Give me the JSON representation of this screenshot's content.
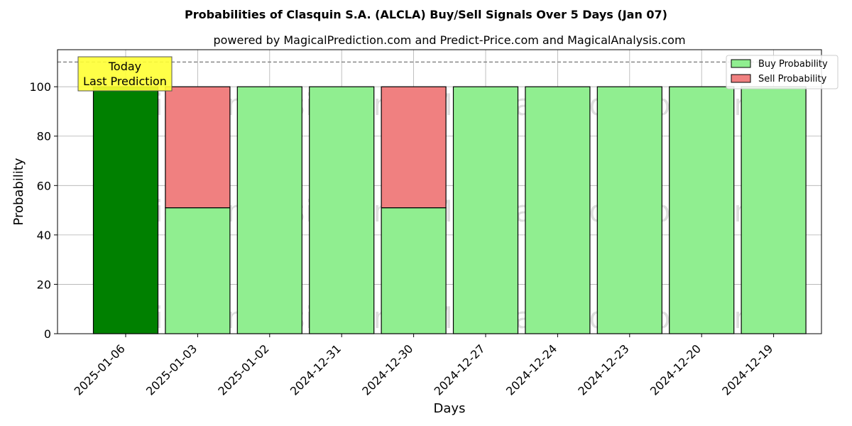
{
  "chart_data": {
    "type": "bar",
    "title": "Probabilities of Clasquin S.A. (ALCLA) Buy/Sell Signals Over 5 Days (Jan 07)",
    "subtitle": "powered by MagicalPrediction.com and Predict-Price.com and MagicalAnalysis.com",
    "xlabel": "Days",
    "ylabel": "Probability",
    "ylim": [
      0,
      115
    ],
    "yticks": [
      0,
      20,
      40,
      60,
      80,
      100
    ],
    "categories": [
      "2025-01-06",
      "2025-01-03",
      "2025-01-02",
      "2024-12-31",
      "2024-12-30",
      "2024-12-27",
      "2024-12-24",
      "2024-12-23",
      "2024-12-20",
      "2024-12-19"
    ],
    "series": [
      {
        "name": "Buy Probability",
        "values": [
          100,
          51,
          100,
          100,
          51,
          100,
          100,
          100,
          100,
          100
        ]
      },
      {
        "name": "Sell Probability",
        "values": [
          0,
          49,
          0,
          0,
          49,
          0,
          0,
          0,
          0,
          0
        ]
      }
    ],
    "highlight_index": 0,
    "reference_line": 110,
    "annotation": [
      "Today",
      "Last Prediction"
    ],
    "watermarks": [
      "MagicalAnalysis.com",
      "MagicalPrediction.com"
    ],
    "legend_placement": "top-right",
    "grid": true,
    "colors": {
      "buy": "#90ee90",
      "sell": "#f08080",
      "today": "#008000",
      "annotation_bg": "#ffff33",
      "watermark": "#2e9e4a"
    }
  }
}
